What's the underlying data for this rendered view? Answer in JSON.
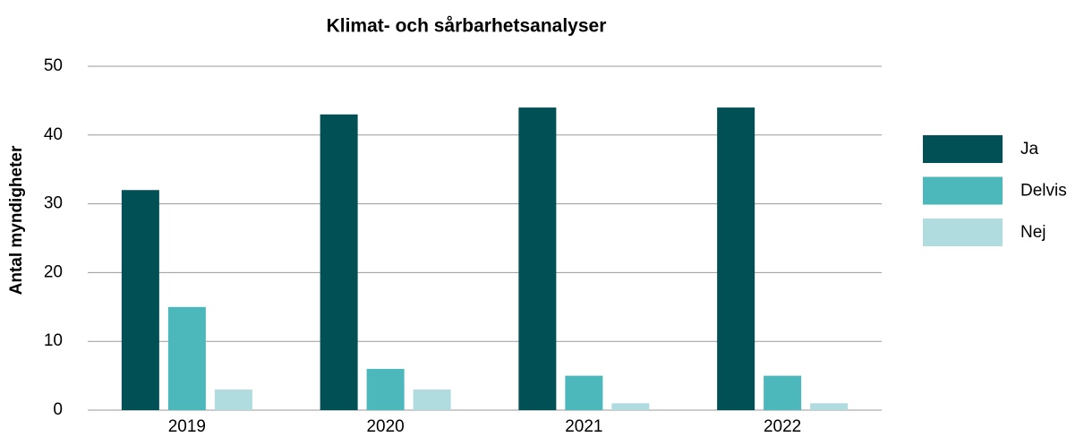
{
  "chart_data": {
    "type": "bar",
    "title": "Klimat- och sårbarhetsanalyser",
    "y_label": "Antal myndigheter",
    "categories": [
      "2019",
      "2020",
      "2021",
      "2022"
    ],
    "series": [
      {
        "name": "Ja",
        "color": "#005055",
        "values": [
          32,
          43,
          44,
          44
        ]
      },
      {
        "name": "Delvis",
        "color": "#4cb8bc",
        "values": [
          15,
          6,
          5,
          5
        ]
      },
      {
        "name": "Nej",
        "color": "#b0dcdf",
        "values": [
          3,
          3,
          1,
          1
        ]
      }
    ],
    "ylim": [
      0,
      50
    ],
    "yticks": [
      0,
      10,
      20,
      30,
      40,
      50
    ],
    "grid": true,
    "legend": "right"
  }
}
